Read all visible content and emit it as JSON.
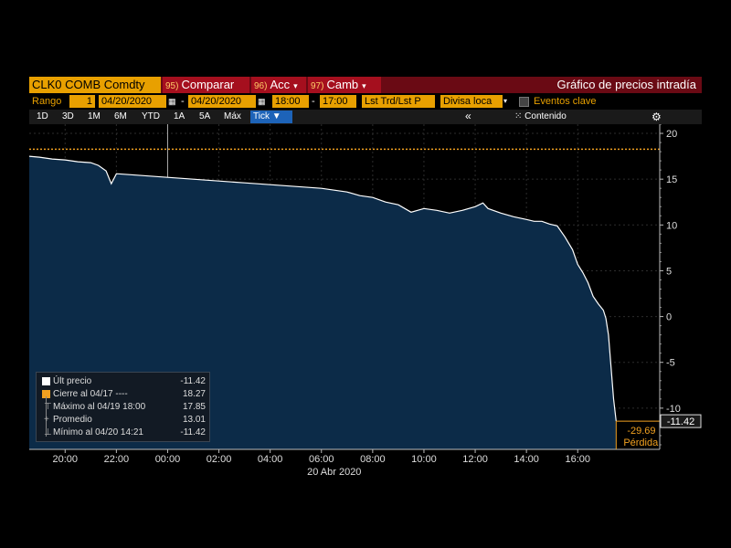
{
  "header": {
    "ticker": "CLK0 COMB Comdty",
    "buttons": [
      {
        "num": "95)",
        "label": "Comparar"
      },
      {
        "num": "96)",
        "label": "Acc"
      },
      {
        "num": "97)",
        "label": "Camb"
      }
    ],
    "app_title": "Gráfico de precios intradía"
  },
  "range_bar": {
    "label": "Rango",
    "range_value": "1",
    "start_date": "04/20/2020",
    "dash": "-",
    "end_date": "04/20/2020",
    "start_time": "18:00",
    "end_time": "17:00",
    "price_field": "Lst Trd/Lst P",
    "currency": "Divisa loca",
    "key_events": "Eventos clave"
  },
  "period_bar": {
    "periods": [
      "1D",
      "3D",
      "1M",
      "6M",
      "YTD",
      "1A",
      "5A",
      "Máx"
    ],
    "tick_label": "Tick",
    "collapse": "«",
    "content_label": "Contenido",
    "settings_icon": "gear-icon"
  },
  "legend": {
    "rows": [
      {
        "name": "Últ precio",
        "value": "-11.42"
      },
      {
        "name": "Cierre al 04/17 ----",
        "value": "18.27"
      },
      {
        "name": "Máximo al 04/19 18:00",
        "value": "17.85"
      },
      {
        "name": "Promedio",
        "value": "13.01"
      },
      {
        "name": "Mínimo al 04/20 14:21",
        "value": "-11.42"
      }
    ]
  },
  "colors": {
    "area_fill": "#0c2b48",
    "price_line": "#ffffff",
    "prior_close": "#f0a020",
    "accent_orange": "#e8a000",
    "title_bg": "#a50f1e"
  },
  "chart_data": {
    "type": "area",
    "x_tick_labels": [
      "20:00",
      "22:00",
      "00:00",
      "02:00",
      "04:00",
      "06:00",
      "08:00",
      "10:00",
      "12:00",
      "14:00",
      "16:00"
    ],
    "x_date_label": "20 Abr 2020",
    "y_ticks": [
      20,
      15,
      10,
      5,
      0,
      -5,
      -10
    ],
    "ylim": [
      -14.5,
      21
    ],
    "xlim_hours": [
      18.6,
      43.2
    ],
    "prior_close": 18.27,
    "last_price": "-11.42",
    "last_price_value": -11.42,
    "loss_value": "-29.69",
    "loss_label": "Pérdida",
    "series": [
      {
        "x_hours": [
          18.6,
          19.0,
          19.5,
          20.0,
          20.5,
          21.0,
          21.3,
          21.6,
          21.8,
          22.0,
          22.5,
          23.0,
          23.5,
          24.0,
          24.5,
          25.0,
          25.5,
          26.0,
          27.0,
          28.0,
          29.0,
          30.0,
          31.0,
          31.5,
          32.0,
          32.5,
          33.0,
          33.5,
          34.0,
          34.5,
          35.0,
          35.5,
          36.0,
          36.3,
          36.5,
          37.0,
          37.5,
          38.0,
          38.3,
          38.6,
          38.9,
          39.2,
          39.5,
          39.8,
          40.0,
          40.2,
          40.4,
          40.6,
          40.8,
          41.0,
          41.1,
          41.2,
          41.3,
          41.4,
          41.5
        ],
        "values": [
          17.5,
          17.4,
          17.2,
          17.1,
          16.9,
          16.8,
          16.5,
          15.9,
          14.5,
          15.6,
          15.5,
          15.4,
          15.3,
          15.2,
          15.1,
          15.0,
          14.9,
          14.8,
          14.6,
          14.4,
          14.2,
          14.0,
          13.6,
          13.2,
          13.0,
          12.5,
          12.2,
          11.4,
          11.8,
          11.6,
          11.3,
          11.6,
          12.0,
          12.4,
          11.8,
          11.3,
          10.9,
          10.6,
          10.4,
          10.4,
          10.1,
          9.9,
          8.7,
          7.3,
          5.7,
          4.8,
          3.7,
          2.2,
          1.4,
          0.7,
          -0.2,
          -2.0,
          -5.5,
          -9.0,
          -11.42
        ]
      }
    ]
  }
}
